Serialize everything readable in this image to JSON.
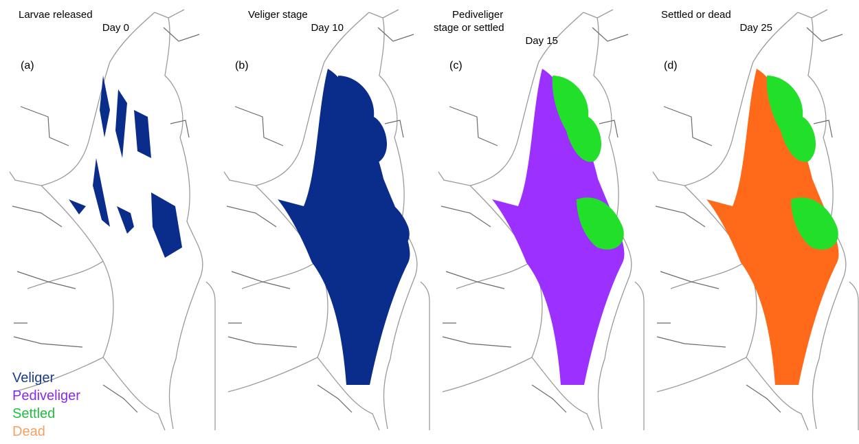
{
  "panels": [
    {
      "label": "(a)",
      "title_lines": [
        "Larvae released",
        "Day 0"
      ]
    },
    {
      "label": "(b)",
      "title_lines": [
        "Veliger stage",
        "Day 10"
      ]
    },
    {
      "label": "(c)",
      "title_lines": [
        "Pediveliger",
        "stage or settled",
        "Day 15"
      ]
    },
    {
      "label": "(d)",
      "title_lines": [
        "Settled or dead",
        "Day 25"
      ]
    }
  ],
  "legend": [
    {
      "name": "Veliger",
      "color": "#1b3a8c"
    },
    {
      "name": "Pediveliger",
      "color": "#8a2be2"
    },
    {
      "name": "Settled",
      "color": "#1fbf3f"
    },
    {
      "name": "Dead",
      "color": "#f5a062"
    }
  ]
}
